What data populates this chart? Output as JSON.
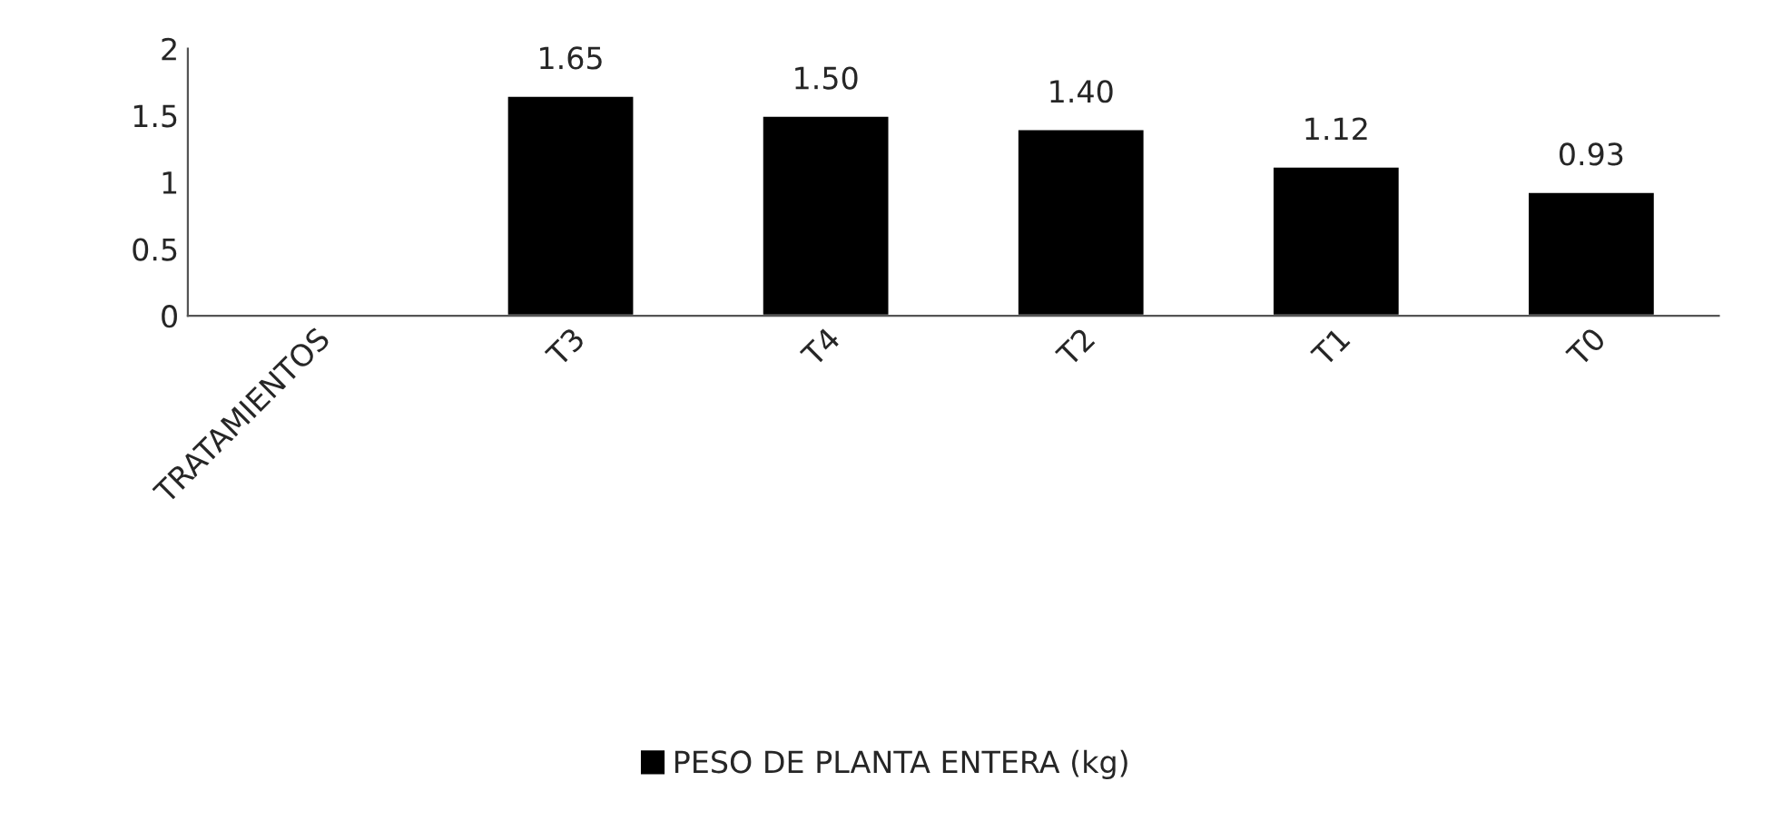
{
  "chart_data": {
    "type": "bar",
    "categories": [
      "TRATAMIENTOS",
      "T3",
      "T4",
      "T2",
      "T1",
      "T0"
    ],
    "series": [
      {
        "name": "PESO DE PLANTA ENTERA (kg)",
        "color": "#000000",
        "values": [
          null,
          1.65,
          1.5,
          1.4,
          1.12,
          0.93
        ],
        "value_labels": [
          null,
          "1.65",
          "1.50",
          "1.40",
          "1.12",
          "0.93"
        ]
      }
    ],
    "ylim": [
      0,
      2
    ],
    "yticks": [
      0,
      0.5,
      1,
      1.5,
      2
    ],
    "grid": false,
    "legend": "bottom"
  }
}
